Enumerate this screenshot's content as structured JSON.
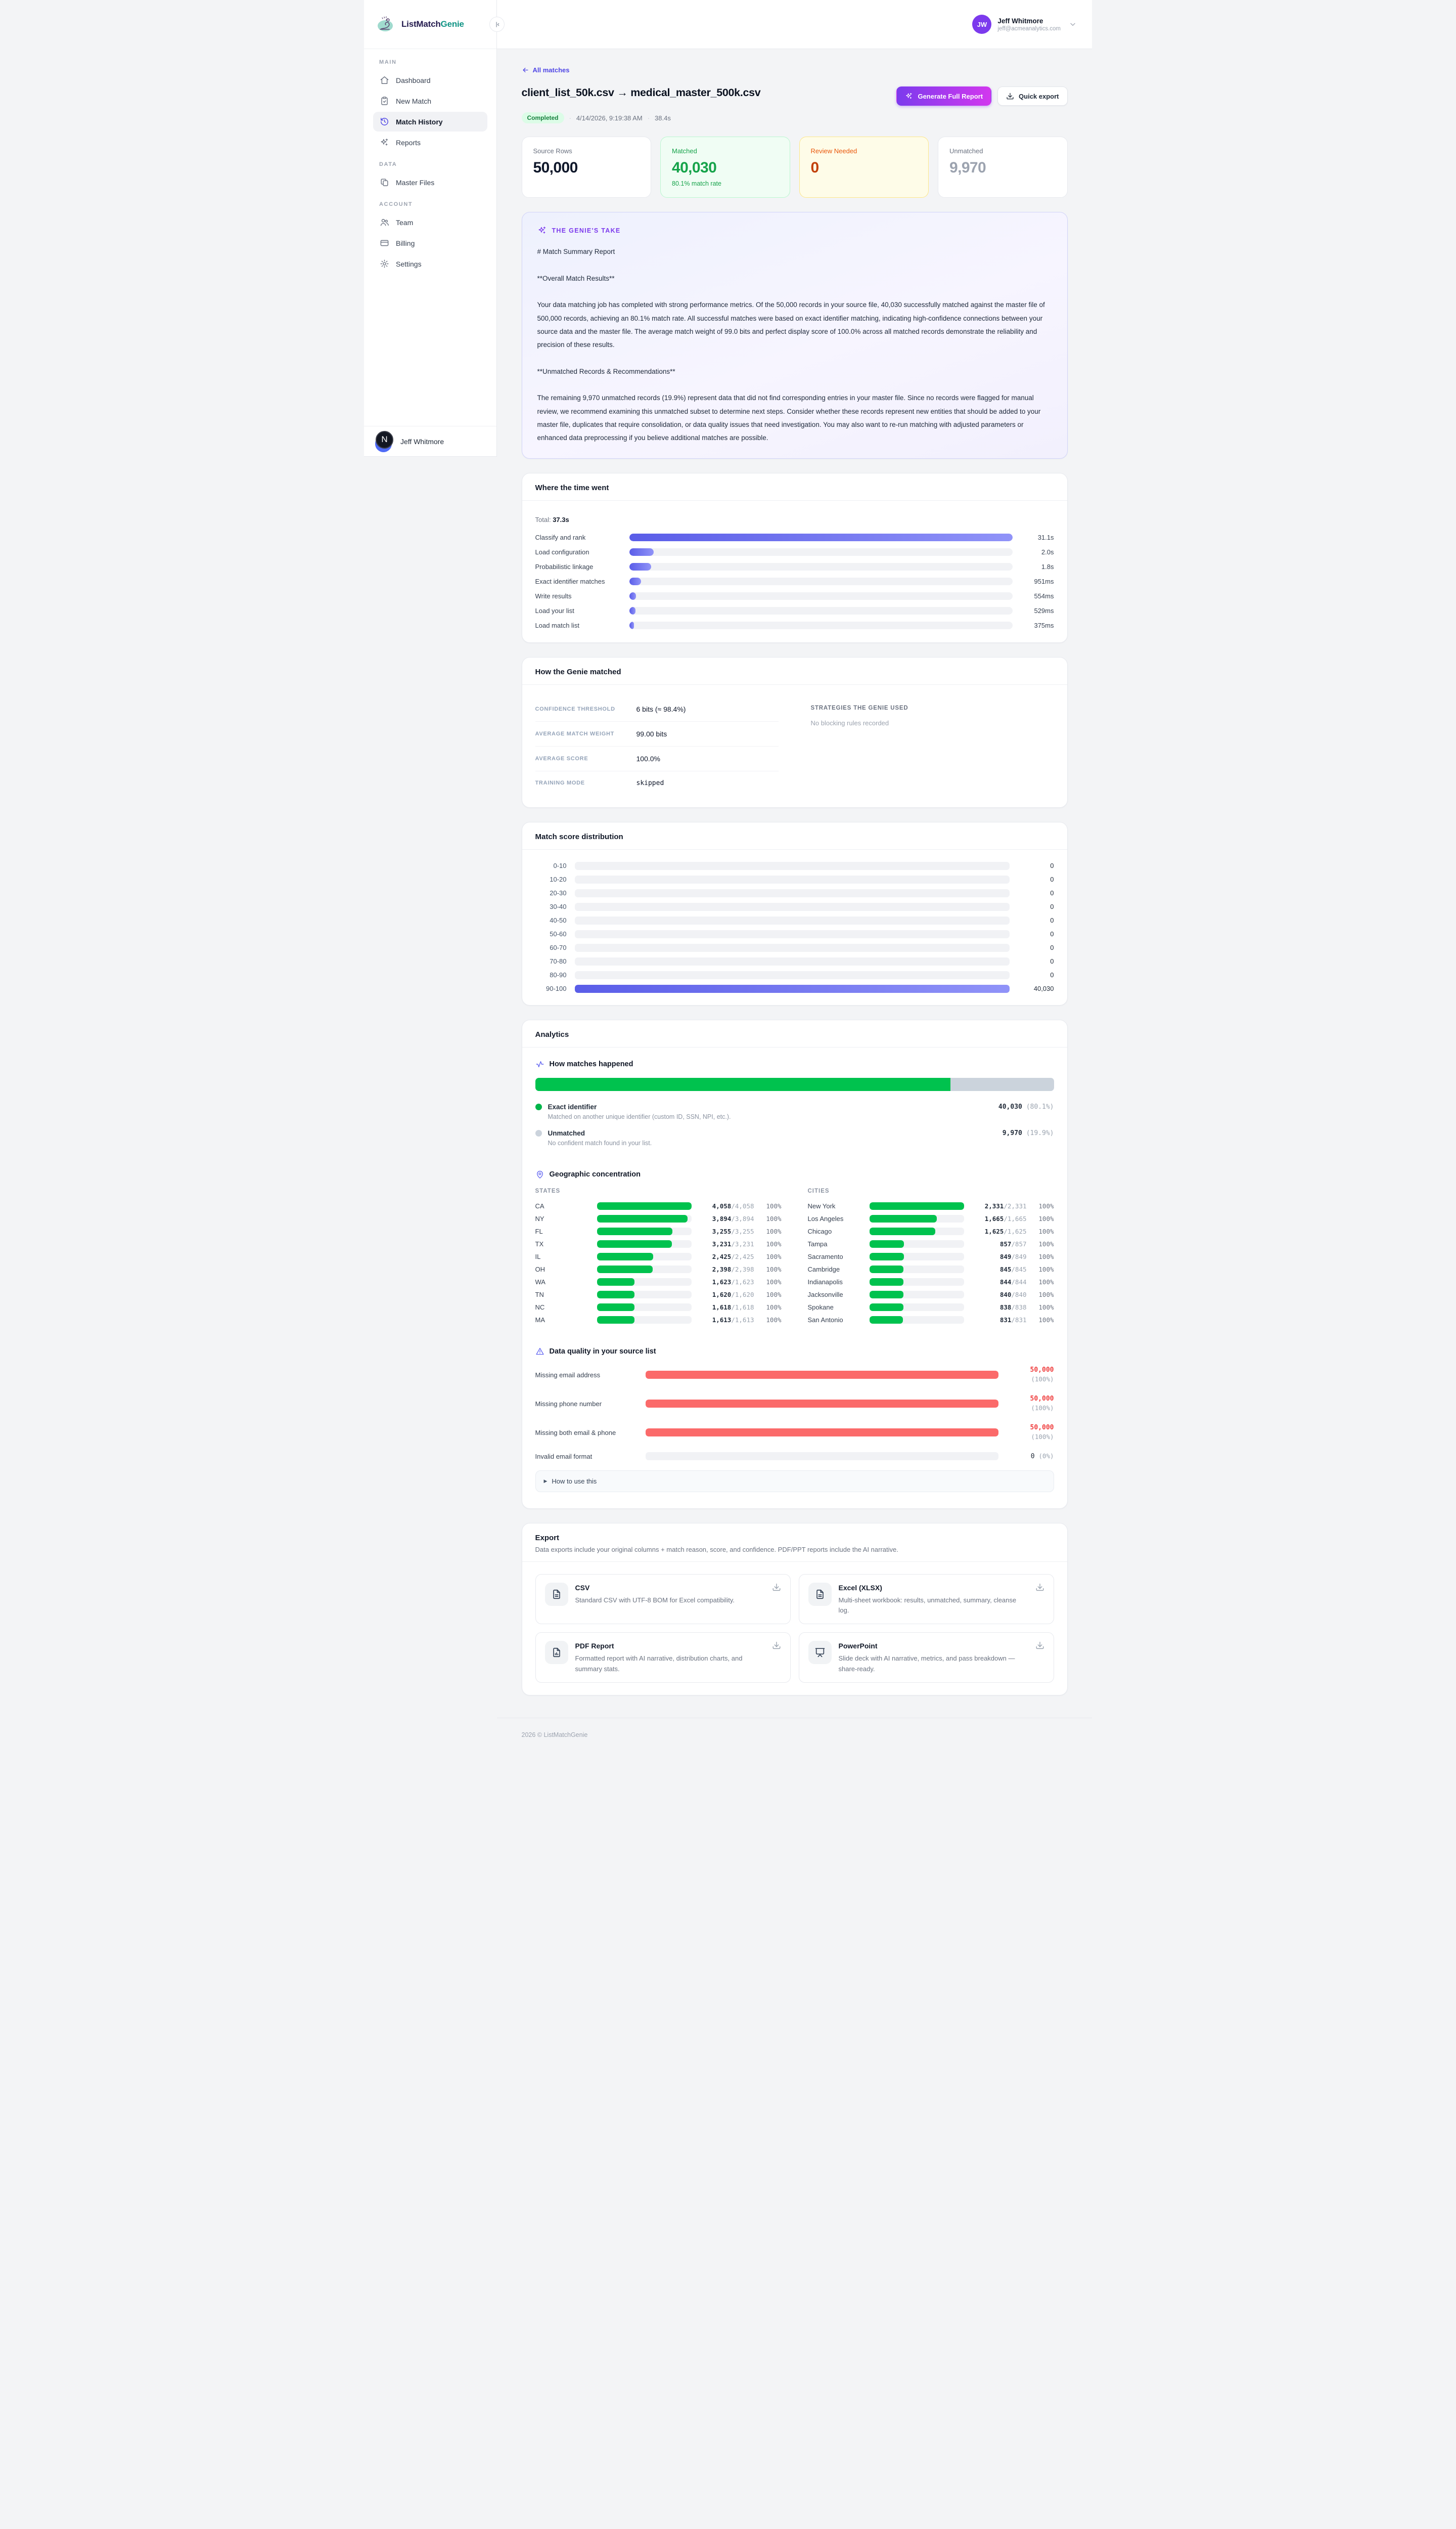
{
  "brand": {
    "primary": "ListMatch",
    "secondary": "Genie"
  },
  "sidebar": {
    "sections": [
      {
        "label": "MAIN",
        "items": [
          {
            "label": "Dashboard"
          },
          {
            "label": "New Match"
          },
          {
            "label": "Match History"
          },
          {
            "label": "Reports"
          }
        ]
      },
      {
        "label": "DATA",
        "items": [
          {
            "label": "Master Files"
          }
        ]
      },
      {
        "label": "ACCOUNT",
        "items": [
          {
            "label": "Team"
          },
          {
            "label": "Billing"
          },
          {
            "label": "Settings"
          }
        ]
      }
    ],
    "user": {
      "name": "Jeff Whitmore",
      "avatar_letter": "N",
      "avatar_back_initials": "JW"
    }
  },
  "header": {
    "user": {
      "name": "Jeff Whitmore",
      "email": "jeff@acmeanalytics.com",
      "initials": "JW"
    }
  },
  "page": {
    "back": "All matches",
    "title": "client_list_50k.csv → medical_master_500k.csv",
    "badge": "Completed",
    "separator": "·",
    "date": "4/14/2026, 9:19:38 AM",
    "duration": "38.4s",
    "btn_report": "Generate Full Report",
    "btn_export": "Quick export"
  },
  "stats": [
    {
      "label": "Source Rows",
      "value": "50,000",
      "sub": ""
    },
    {
      "label": "Matched",
      "value": "40,030",
      "sub": "80.1% match rate"
    },
    {
      "label": "Review Needed",
      "value": "0",
      "sub": ""
    },
    {
      "label": "Unmatched",
      "value": "9,970",
      "sub": ""
    }
  ],
  "genie": {
    "title": "THE GENIE'S TAKE",
    "body": "# Match Summary Report\n\n**Overall Match Results**\n\nYour data matching job has completed with strong performance metrics. Of the 50,000 records in your source file, 40,030 successfully matched against the master file of 500,000 records, achieving an 80.1% match rate. All successful matches were based on exact identifier matching, indicating high-confidence connections between your source data and the master file. The average match weight of 99.0 bits and perfect display score of 100.0% across all matched records demonstrate the reliability and precision of these results.\n\n**Unmatched Records & Recommendations**\n\nThe remaining 9,970 unmatched records (19.9%) represent data that did not find corresponding entries in your master file. Since no records were flagged for manual review, we recommend examining this unmatched subset to determine next steps. Consider whether these records represent new entities that should be added to your master file, duplicates that require consolidation, or data quality issues that need investigation. You may also want to re-run matching with adjusted parameters or enhanced data preprocessing if you believe additional matches are possible."
  },
  "timing": {
    "title": "Where the time went",
    "total_label": "Total:",
    "total_value": "37.3s",
    "rows": [
      {
        "label": "Classify and rank",
        "value": "31.1s",
        "pct": 100
      },
      {
        "label": "Load configuration",
        "value": "2.0s",
        "pct": 6.4
      },
      {
        "label": "Probabilistic linkage",
        "value": "1.8s",
        "pct": 5.8
      },
      {
        "label": "Exact identifier matches",
        "value": "951ms",
        "pct": 3.1
      },
      {
        "label": "Write results",
        "value": "554ms",
        "pct": 1.8
      },
      {
        "label": "Load your list",
        "value": "529ms",
        "pct": 1.7
      },
      {
        "label": "Load match list",
        "value": "375ms",
        "pct": 1.2
      }
    ]
  },
  "config": {
    "title": "How the Genie matched",
    "rows": [
      {
        "label": "CONFIDENCE THRESHOLD",
        "value": "6 bits (≈ 98.4%)"
      },
      {
        "label": "AVERAGE MATCH WEIGHT",
        "value": "99.00 bits"
      },
      {
        "label": "AVERAGE SCORE",
        "value": "100.0%"
      },
      {
        "label": "TRAINING MODE",
        "value": "skipped"
      }
    ],
    "strategies_title": "STRATEGIES THE GENIE USED",
    "strategies_empty": "No blocking rules recorded"
  },
  "distribution": {
    "title": "Match score distribution",
    "rows": [
      {
        "label": "0-10",
        "value": "0",
        "pct": 0
      },
      {
        "label": "10-20",
        "value": "0",
        "pct": 0
      },
      {
        "label": "20-30",
        "value": "0",
        "pct": 0
      },
      {
        "label": "30-40",
        "value": "0",
        "pct": 0
      },
      {
        "label": "40-50",
        "value": "0",
        "pct": 0
      },
      {
        "label": "50-60",
        "value": "0",
        "pct": 0
      },
      {
        "label": "60-70",
        "value": "0",
        "pct": 0
      },
      {
        "label": "70-80",
        "value": "0",
        "pct": 0
      },
      {
        "label": "80-90",
        "value": "0",
        "pct": 0
      },
      {
        "label": "90-100",
        "value": "40,030",
        "pct": 100
      }
    ]
  },
  "analytics": {
    "title": "Analytics",
    "how": {
      "title": "How matches happened",
      "segments": [
        {
          "pct": 80.1
        },
        {
          "pct": 19.9
        }
      ],
      "legend": [
        {
          "name": "Exact identifier",
          "value": "40,030",
          "pct": "(80.1%)",
          "desc": "Matched on another unique identifier (custom ID, SSN, NPI, etc.)."
        },
        {
          "name": "Unmatched",
          "value": "9,970",
          "pct": "(19.9%)",
          "desc": "No confident match found in your list."
        }
      ]
    },
    "geo": {
      "title": "Geographic concentration",
      "states_header": "STATES",
      "cities_header": "CITIES",
      "states": [
        {
          "label": "CA",
          "matched": "4,058",
          "total": "/4,058",
          "pct_label": "100%",
          "pct": 100
        },
        {
          "label": "NY",
          "matched": "3,894",
          "total": "/3,894",
          "pct_label": "100%",
          "pct": 96
        },
        {
          "label": "FL",
          "matched": "3,255",
          "total": "/3,255",
          "pct_label": "100%",
          "pct": 80.2
        },
        {
          "label": "TX",
          "matched": "3,231",
          "total": "/3,231",
          "pct_label": "100%",
          "pct": 79.6
        },
        {
          "label": "IL",
          "matched": "2,425",
          "total": "/2,425",
          "pct_label": "100%",
          "pct": 59.8
        },
        {
          "label": "OH",
          "matched": "2,398",
          "total": "/2,398",
          "pct_label": "100%",
          "pct": 59.1
        },
        {
          "label": "WA",
          "matched": "1,623",
          "total": "/1,623",
          "pct_label": "100%",
          "pct": 40
        },
        {
          "label": "TN",
          "matched": "1,620",
          "total": "/1,620",
          "pct_label": "100%",
          "pct": 39.9
        },
        {
          "label": "NC",
          "matched": "1,618",
          "total": "/1,618",
          "pct_label": "100%",
          "pct": 39.9
        },
        {
          "label": "MA",
          "matched": "1,613",
          "total": "/1,613",
          "pct_label": "100%",
          "pct": 39.7
        }
      ],
      "cities": [
        {
          "label": "New York",
          "matched": "2,331",
          "total": "/2,331",
          "pct_label": "100%",
          "pct": 100
        },
        {
          "label": "Los Angeles",
          "matched": "1,665",
          "total": "/1,665",
          "pct_label": "100%",
          "pct": 71.4
        },
        {
          "label": "Chicago",
          "matched": "1,625",
          "total": "/1,625",
          "pct_label": "100%",
          "pct": 69.7
        },
        {
          "label": "Tampa",
          "matched": "857",
          "total": "/857",
          "pct_label": "100%",
          "pct": 36.8
        },
        {
          "label": "Sacramento",
          "matched": "849",
          "total": "/849",
          "pct_label": "100%",
          "pct": 36.4
        },
        {
          "label": "Cambridge",
          "matched": "845",
          "total": "/845",
          "pct_label": "100%",
          "pct": 36.3
        },
        {
          "label": "Indianapolis",
          "matched": "844",
          "total": "/844",
          "pct_label": "100%",
          "pct": 36.2
        },
        {
          "label": "Jacksonville",
          "matched": "840",
          "total": "/840",
          "pct_label": "100%",
          "pct": 36
        },
        {
          "label": "Spokane",
          "matched": "838",
          "total": "/838",
          "pct_label": "100%",
          "pct": 35.9
        },
        {
          "label": "San Antonio",
          "matched": "831",
          "total": "/831",
          "pct_label": "100%",
          "pct": 35.7
        }
      ]
    },
    "dq": {
      "title": "Data quality in your source list",
      "rows": [
        {
          "label": "Missing email address",
          "value": "50,000",
          "pct_label": "(100%)",
          "pct": 100
        },
        {
          "label": "Missing phone number",
          "value": "50,000",
          "pct_label": "(100%)",
          "pct": 100
        },
        {
          "label": "Missing both email & phone",
          "value": "50,000",
          "pct_label": "(100%)",
          "pct": 100
        },
        {
          "label": "Invalid email format",
          "value": "0",
          "pct_label": "(0%)",
          "pct": 0
        }
      ],
      "howto": "How to use this"
    }
  },
  "export": {
    "title": "Export",
    "subtitle": "Data exports include your original columns + match reason, score, and confidence. PDF/PPT reports include the AI narrative.",
    "cards": [
      {
        "title": "CSV",
        "desc": "Standard CSV with UTF-8 BOM for Excel compatibility."
      },
      {
        "title": "Excel (XLSX)",
        "desc": "Multi-sheet workbook: results, unmatched, summary, cleanse log."
      },
      {
        "title": "PDF Report",
        "desc": "Formatted report with AI narrative, distribution charts, and summary stats."
      },
      {
        "title": "PowerPoint",
        "desc": "Slide deck with AI narrative, metrics, and pass breakdown — share-ready."
      }
    ]
  },
  "footer": {
    "text": "2026 © ListMatchGenie"
  }
}
